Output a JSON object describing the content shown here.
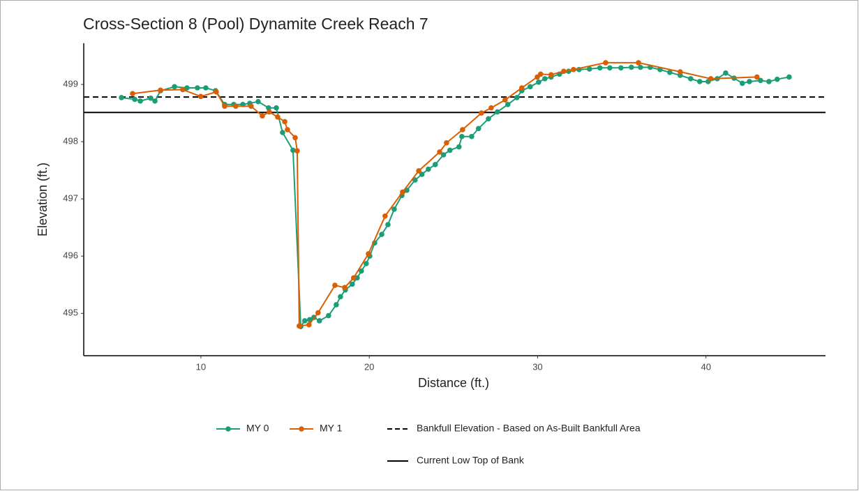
{
  "chart_data": {
    "type": "line",
    "title": "Cross-Section 8 (Pool) Dynamite Creek Reach 7",
    "x_label": "Distance (ft.)",
    "y_label": "Elevation (ft.)",
    "xlim": [
      3.04,
      47.1
    ],
    "xticks": [
      10,
      20,
      30,
      40
    ],
    "ylim": [
      494.26,
      499.72
    ],
    "yticks": [
      495,
      496,
      497,
      498,
      499
    ],
    "series": [
      {
        "name": "MY 0",
        "color": "#1b9e77",
        "x": [
          5.28,
          6.07,
          6.4,
          7.02,
          7.27,
          7.6,
          8.43,
          9.17,
          9.79,
          10.29,
          10.87,
          11.41,
          11.95,
          12.49,
          12.9,
          13.4,
          14.02,
          14.48,
          14.85,
          15.47,
          15.93,
          16.17,
          16.46,
          16.71,
          17.04,
          17.58,
          18.04,
          18.29,
          18.58,
          18.99,
          19.28,
          19.53,
          19.82,
          20.03,
          20.32,
          20.74,
          21.11,
          21.48,
          21.94,
          22.23,
          22.72,
          23.13,
          23.51,
          23.92,
          24.41,
          24.79,
          25.33,
          25.5,
          26.08,
          26.49,
          27.08,
          27.61,
          28.23,
          28.77,
          29.06,
          29.56,
          30.06,
          30.43,
          30.8,
          31.3,
          31.84,
          32.46,
          33.08,
          33.7,
          34.29,
          34.95,
          35.57,
          36.11,
          36.69,
          37.27,
          37.85,
          38.47,
          39.09,
          39.63,
          40.13,
          40.67,
          41.17,
          41.67,
          42.16,
          42.58,
          43.24,
          43.74,
          44.23,
          44.94
        ],
        "values": [
          498.77,
          498.74,
          498.71,
          498.76,
          498.71,
          498.89,
          498.96,
          498.94,
          498.94,
          498.94,
          498.89,
          498.65,
          498.65,
          498.65,
          498.67,
          498.7,
          498.59,
          498.59,
          498.16,
          497.85,
          494.77,
          494.87,
          494.89,
          494.93,
          494.87,
          494.96,
          495.15,
          495.29,
          495.41,
          495.51,
          495.62,
          495.74,
          495.87,
          496.0,
          496.23,
          496.38,
          496.55,
          496.82,
          497.06,
          497.15,
          497.33,
          497.43,
          497.52,
          497.6,
          497.77,
          497.85,
          497.91,
          498.09,
          498.09,
          498.23,
          498.4,
          498.52,
          498.65,
          498.77,
          498.89,
          498.96,
          499.04,
          499.1,
          499.13,
          499.18,
          499.23,
          499.26,
          499.27,
          499.29,
          499.29,
          499.29,
          499.3,
          499.3,
          499.3,
          499.26,
          499.21,
          499.16,
          499.1,
          499.05,
          499.05,
          499.1,
          499.2,
          499.11,
          499.02,
          499.05,
          499.07,
          499.05,
          499.09,
          499.13
        ]
      },
      {
        "name": "MY 1",
        "color": "#d95f02",
        "x": [
          5.94,
          7.6,
          8.92,
          9.99,
          10.91,
          11.41,
          12.07,
          12.98,
          13.65,
          14.06,
          14.56,
          14.98,
          15.14,
          15.6,
          15.72,
          15.84,
          16.42,
          16.96,
          17.96,
          18.54,
          19.07,
          19.95,
          20.94,
          21.98,
          22.94,
          24.18,
          24.59,
          25.54,
          26.66,
          27.24,
          28.07,
          29.06,
          29.98,
          30.18,
          30.8,
          31.55,
          32.13,
          34.04,
          35.99,
          38.47,
          40.29,
          43.03
        ],
        "values": [
          498.84,
          498.9,
          498.91,
          498.79,
          498.87,
          498.62,
          498.62,
          498.62,
          498.45,
          498.52,
          498.43,
          498.35,
          498.21,
          498.07,
          497.84,
          494.78,
          494.8,
          495.01,
          495.49,
          495.45,
          495.62,
          496.04,
          496.7,
          497.12,
          497.49,
          497.82,
          497.98,
          498.21,
          498.5,
          498.59,
          498.73,
          498.94,
          499.13,
          499.18,
          499.17,
          499.23,
          499.26,
          499.38,
          499.38,
          499.22,
          499.1,
          499.13
        ]
      }
    ],
    "reference_lines": [
      {
        "name": "Bankfull Elevation - Based on As-Built Bankfull Area",
        "value": 498.78,
        "style": "dashed",
        "color": "#000000"
      },
      {
        "name": "Current Low Top of Bank",
        "value": 498.51,
        "style": "solid",
        "color": "#000000"
      }
    ]
  }
}
